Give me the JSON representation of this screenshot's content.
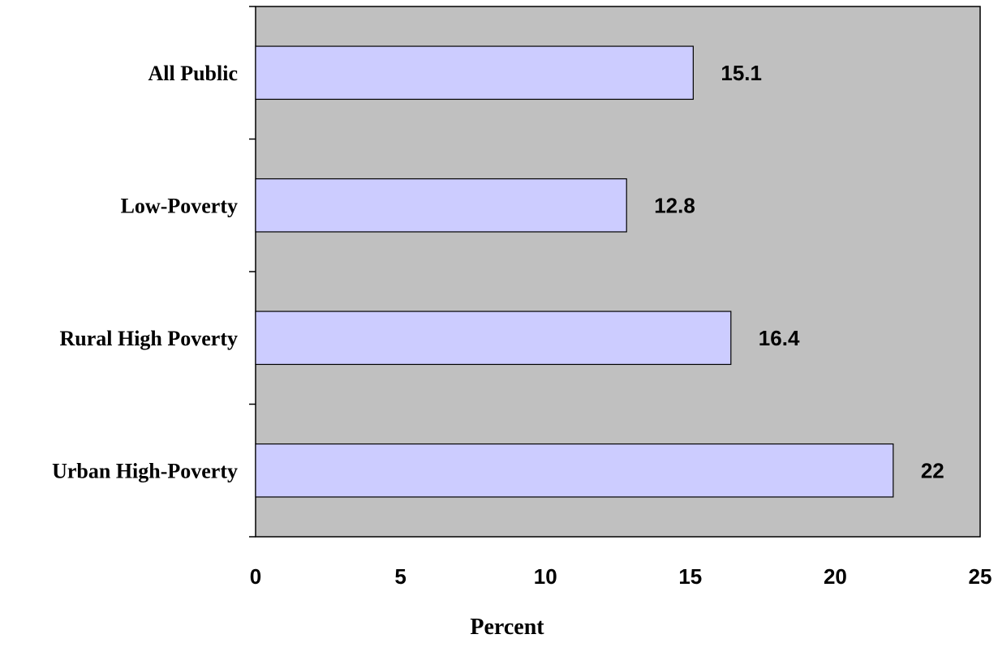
{
  "chart_data": {
    "type": "bar",
    "orientation": "horizontal",
    "categories": [
      "All Public",
      "Low-Poverty",
      "Rural High Poverty",
      "Urban High-Poverty"
    ],
    "values": [
      15.1,
      12.8,
      16.4,
      22
    ],
    "value_labels": [
      "15.1",
      "12.8",
      "16.4",
      "22"
    ],
    "xlabel": "Percent",
    "ylabel": "",
    "title": "",
    "xlim": [
      0,
      25
    ],
    "x_ticks": [
      "0",
      "5",
      "10",
      "15",
      "20",
      "25"
    ],
    "grid": false,
    "legend": "none",
    "colors": {
      "bar_fill": "#ccccff",
      "bar_stroke": "#000000",
      "plot_background": "#c0c0c0",
      "page_background": "#ffffff"
    }
  }
}
